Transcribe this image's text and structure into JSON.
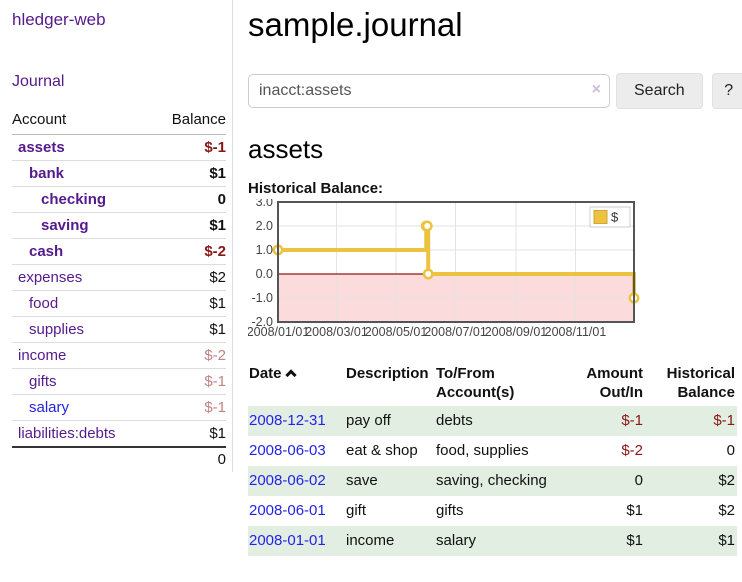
{
  "app_title": "hledger-web",
  "sidebar": {
    "journal_link": "Journal",
    "accounts_table": {
      "headers": [
        "Account",
        "Balance"
      ],
      "rows": [
        {
          "account": "assets",
          "balance": "$-1"
        },
        {
          "account": "bank",
          "balance": "$1"
        },
        {
          "account": "checking",
          "balance": "0"
        },
        {
          "account": "saving",
          "balance": "$1"
        },
        {
          "account": "cash",
          "balance": "$-2"
        },
        {
          "account": "expenses",
          "balance": "$2"
        },
        {
          "account": "food",
          "balance": "$1"
        },
        {
          "account": "supplies",
          "balance": "$1"
        },
        {
          "account": "income",
          "balance": "$-2"
        },
        {
          "account": "gifts",
          "balance": "$-1"
        },
        {
          "account": "salary",
          "balance": "$-1"
        },
        {
          "account": "liabilities:debts",
          "balance": "$1"
        }
      ],
      "total": "0"
    }
  },
  "main": {
    "title": "sample.journal",
    "search": {
      "value": "inacct:assets",
      "clear_label": "×",
      "search_button": "Search",
      "help_button": "?"
    },
    "account_heading": "assets",
    "chart_label": "Historical Balance:",
    "register": {
      "headers": {
        "date": "Date",
        "description": "Description",
        "accounts": "To/From Account(s)",
        "amount": "Amount Out/In",
        "balance": "Historical Balance"
      },
      "rows": [
        {
          "date": "2008-12-31",
          "description": "pay off",
          "accounts": "debts",
          "amount": "$-1",
          "amount_negative": true,
          "balance": "$-1",
          "balance_negative": true
        },
        {
          "date": "2008-06-03",
          "description": "eat & shop",
          "accounts": "food, supplies",
          "amount": "$-2",
          "amount_negative": true,
          "balance": "0",
          "balance_negative": false
        },
        {
          "date": "2008-06-02",
          "description": "save",
          "accounts": "saving, checking",
          "amount": "0",
          "amount_negative": false,
          "balance": "$2",
          "balance_negative": false
        },
        {
          "date": "2008-06-01",
          "description": "gift",
          "accounts": "gifts",
          "amount": "$1",
          "amount_negative": false,
          "balance": "$2",
          "balance_negative": false
        },
        {
          "date": "2008-01-01",
          "description": "income",
          "accounts": "salary",
          "amount": "$1",
          "amount_negative": false,
          "balance": "$1",
          "balance_negative": false
        }
      ]
    }
  },
  "chart_data": {
    "type": "line",
    "step": true,
    "title": "Historical Balance:",
    "series": [
      {
        "name": "$",
        "points": [
          [
            "2008-01-01",
            1
          ],
          [
            "2008-06-01",
            2
          ],
          [
            "2008-06-02",
            2
          ],
          [
            "2008-06-03",
            0
          ],
          [
            "2008-12-31",
            -1
          ]
        ]
      }
    ],
    "x_range": [
      "2008-01-01",
      "2008-12-31"
    ],
    "x_tick_dates": [
      "2008-01-01",
      "2008-03-01",
      "2008-05-01",
      "2008-07-01",
      "2008-09-01",
      "2008-11-01"
    ],
    "x_tick_labels": [
      "2008/01/01",
      "2008/03/01",
      "2008/05/01",
      "2008/07/01",
      "2008/09/01",
      "2008/11/01"
    ],
    "y_ticks": [
      3.0,
      2.0,
      1.0,
      0.0,
      -1.0,
      -2.0
    ],
    "ylim": [
      -2,
      3
    ],
    "legend": {
      "position": "top-right",
      "label": "$"
    },
    "colors": {
      "line": "#edc240",
      "marker_fill": "#ffffff",
      "negative_fill": "#fbdbdb",
      "zero_line": "#941616",
      "grid": "#e3e3e3",
      "border": "#545454",
      "tick_text": "#444444",
      "legend_border": "#cccccc",
      "legend_square_border": "#cda72f"
    }
  }
}
